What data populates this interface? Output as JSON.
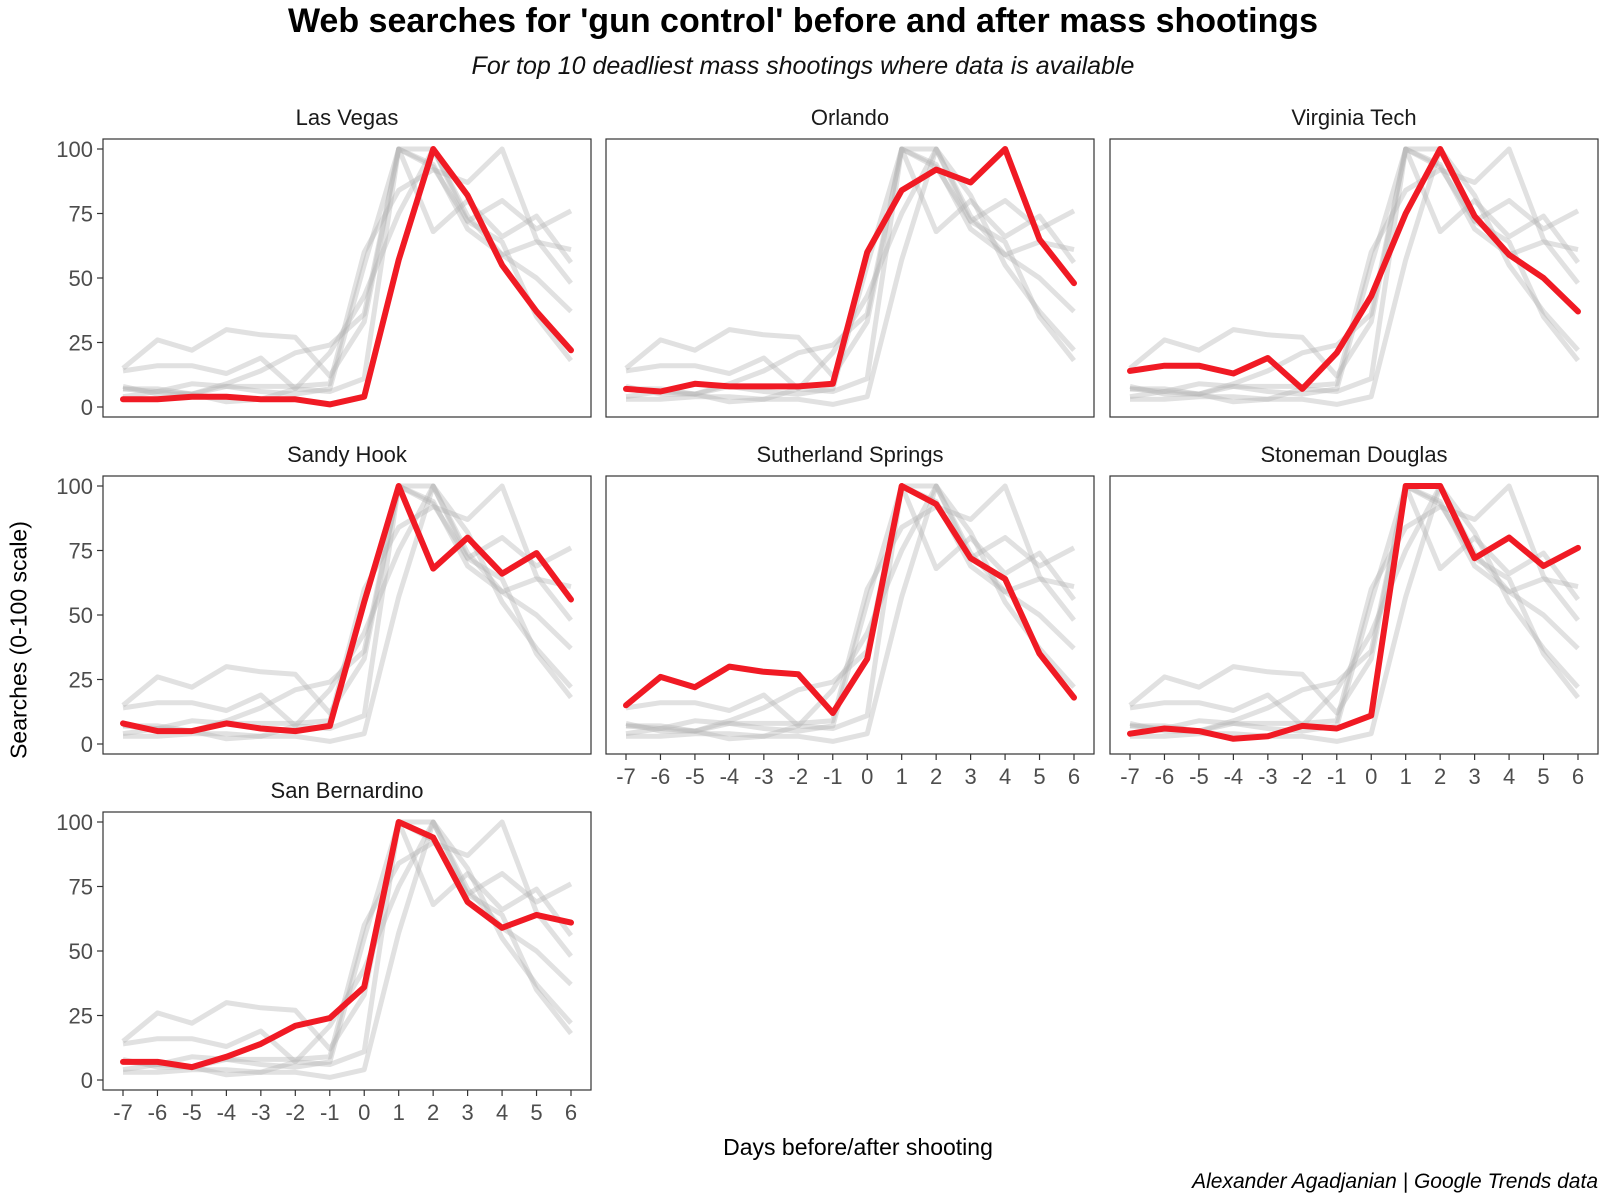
{
  "chart_data": {
    "type": "line",
    "title": "Web searches for 'gun control' before and after mass shootings",
    "subtitle": "For top 10 deadliest mass shootings where data is available",
    "xlabel": "Days before/after shooting",
    "ylabel": "Searches (0-100 scale)",
    "caption": "Alexander Agadjanian | Google Trends data",
    "x": [
      -7,
      -6,
      -5,
      -4,
      -3,
      -2,
      -1,
      0,
      1,
      2,
      3,
      4,
      5,
      6
    ],
    "xlim": [
      -7,
      6
    ],
    "ylim": [
      0,
      100
    ],
    "y_ticks": [
      0,
      25,
      50,
      75,
      100
    ],
    "grid": false,
    "highlight_color": "#f01a24",
    "background_line_color": "#b3b3b3",
    "facets": [
      {
        "name": "Las Vegas",
        "values": [
          3,
          3,
          4,
          4,
          3,
          3,
          1,
          4,
          57,
          100,
          82,
          55,
          37,
          22
        ]
      },
      {
        "name": "Orlando",
        "values": [
          7,
          6,
          9,
          8,
          8,
          8,
          9,
          60,
          84,
          92,
          87,
          100,
          65,
          48
        ]
      },
      {
        "name": "Virginia Tech",
        "values": [
          14,
          16,
          16,
          13,
          19,
          7,
          21,
          43,
          75,
          100,
          74,
          59,
          50,
          37
        ]
      },
      {
        "name": "Sandy Hook",
        "values": [
          8,
          5,
          5,
          8,
          6,
          5,
          7,
          55,
          100,
          68,
          80,
          66,
          74,
          56
        ]
      },
      {
        "name": "Sutherland Springs",
        "values": [
          15,
          26,
          22,
          30,
          28,
          27,
          12,
          33,
          100,
          93,
          72,
          64,
          35,
          18
        ]
      },
      {
        "name": "Stoneman Douglas",
        "values": [
          4,
          6,
          5,
          2,
          3,
          7,
          6,
          11,
          100,
          100,
          72,
          80,
          69,
          76
        ]
      },
      {
        "name": "San Bernardino",
        "values": [
          7,
          7,
          5,
          9,
          14,
          21,
          24,
          36,
          100,
          94,
          69,
          59,
          64,
          61
        ]
      }
    ]
  }
}
